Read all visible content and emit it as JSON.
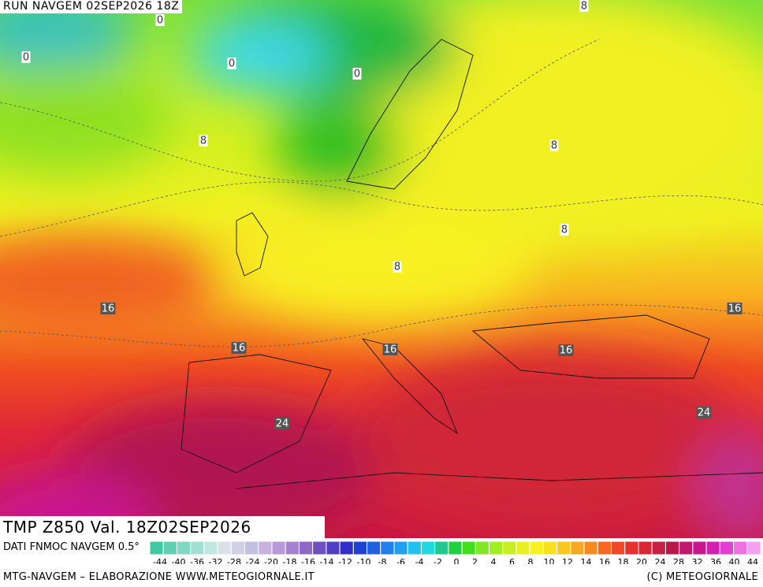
{
  "header": "RUN NAVGEM 02SEP2026 18Z",
  "title": "TMP  Z850  Val. 18Z02SEP2026",
  "source": "DATI FNMOC NAVGEM 0.5°",
  "footer_left": "MTG-NAVGEM – ELABORAZIONE WWW.METEOGIORNALE.IT",
  "footer_right": "(C) METEOGIORNALE",
  "contour_labels": [
    "0",
    "0",
    "0",
    "0",
    "8",
    "8",
    "8",
    "8",
    "8",
    "16",
    "16",
    "16",
    "16",
    "16",
    "24",
    "24"
  ],
  "colorbar": {
    "labels": [
      "-44",
      "-40",
      "-36",
      "-32",
      "-28",
      "-24",
      "-20",
      "-18",
      "-16",
      "-14",
      "-12",
      "-10",
      "-8",
      "-6",
      "-4",
      "-2",
      "0",
      "2",
      "4",
      "6",
      "8",
      "10",
      "12",
      "14",
      "16",
      "18",
      "20",
      "24",
      "28",
      "32",
      "36",
      "40",
      "44"
    ],
    "colors": [
      "#40c8a0",
      "#60d0b0",
      "#80d8c0",
      "#a0e0d0",
      "#c0e8e0",
      "#d8e0e8",
      "#d0d0e8",
      "#c0c0e0",
      "#c8b0e0",
      "#b898d8",
      "#a880d0",
      "#9068c8",
      "#7050c0",
      "#5040c0",
      "#3030c8",
      "#2040d0",
      "#2060e0",
      "#2080e8",
      "#20a0f0",
      "#20c0f0",
      "#20d8e0",
      "#20c890",
      "#20d040",
      "#40e020",
      "#80e820",
      "#a0f020",
      "#c8f020",
      "#e8f020",
      "#f8f020",
      "#f8e020",
      "#f8c820",
      "#f8a820",
      "#f88820",
      "#f86820",
      "#f04828",
      "#e83030",
      "#d82838",
      "#c82040",
      "#b81848",
      "#c01870",
      "#c81890",
      "#d020b0",
      "#e040d0",
      "#f070e0",
      "#f8a0f0"
    ]
  }
}
